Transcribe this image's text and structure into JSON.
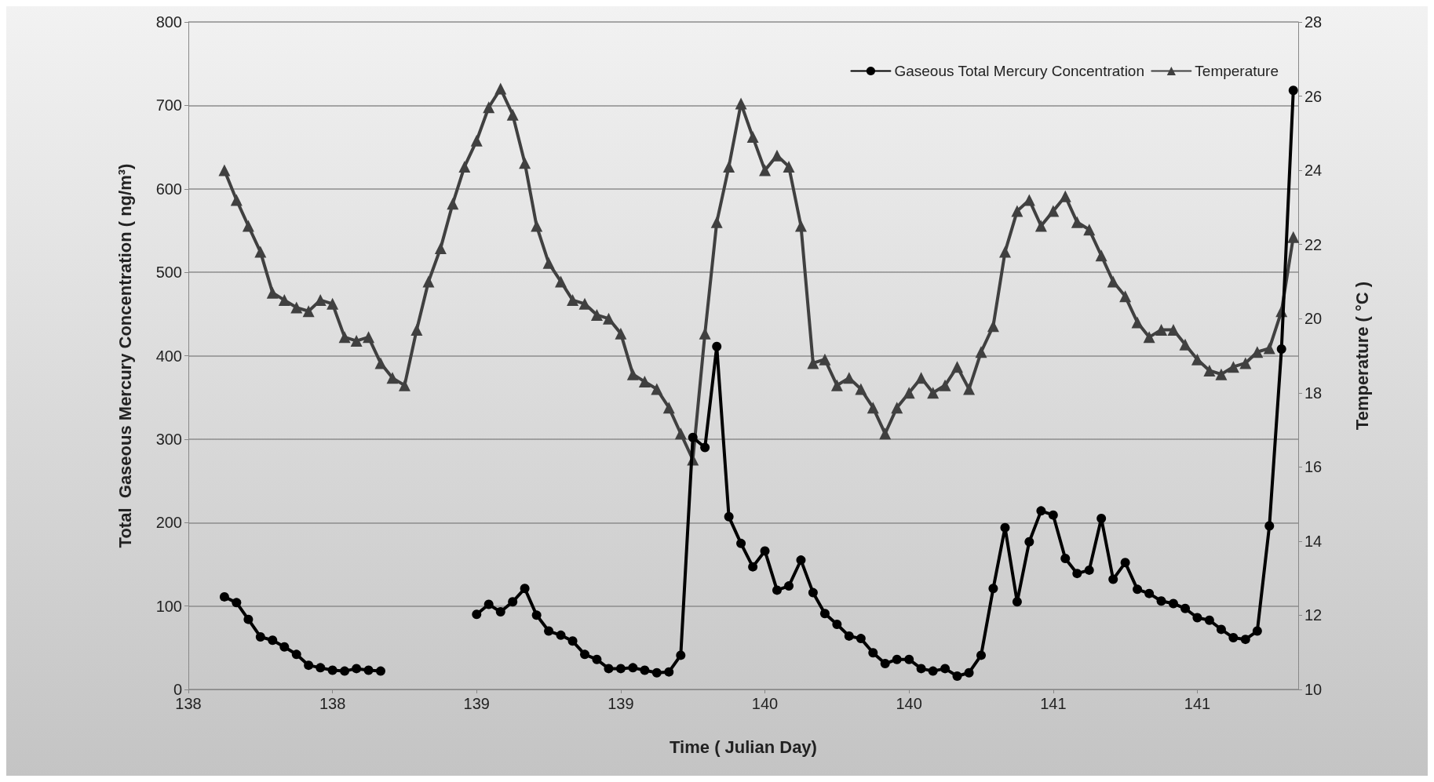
{
  "chart_data": {
    "type": "line",
    "xlabel": "Time ( Julian Day)",
    "ylabel": "Total  Gaseous Mercury Concentration ( ng/m³)",
    "y2label": "Temperature ( °C )",
    "x": [
      138.125,
      138.167,
      138.208,
      138.25,
      138.292,
      138.333,
      138.375,
      138.417,
      138.458,
      138.5,
      138.542,
      138.583,
      138.625,
      138.667,
      138.708,
      138.75,
      138.792,
      138.833,
      138.875,
      138.917,
      138.958,
      139.0,
      139.042,
      139.083,
      139.125,
      139.167,
      139.208,
      139.25,
      139.292,
      139.333,
      139.375,
      139.417,
      139.458,
      139.5,
      139.542,
      139.583,
      139.625,
      139.667,
      139.708,
      139.75,
      139.792,
      139.833,
      139.875,
      139.917,
      139.958,
      140.0,
      140.042,
      140.083,
      140.125,
      140.167,
      140.208,
      140.25,
      140.292,
      140.333,
      140.375,
      140.417,
      140.458,
      140.5,
      140.542,
      140.583,
      140.625,
      140.667,
      140.708,
      140.75,
      140.792,
      140.833,
      140.875,
      140.917,
      140.958,
      141.0,
      141.042,
      141.083,
      141.125,
      141.167,
      141.208,
      141.25,
      141.292,
      141.333,
      141.375,
      141.417,
      141.458,
      141.5,
      141.542,
      141.583,
      141.625,
      141.667,
      141.708,
      141.75,
      141.792,
      141.833
    ],
    "series": [
      {
        "name": "Gaseous Total Mercury Concentration",
        "color": "#000000",
        "marker": "circle",
        "values": [
          111,
          104,
          84,
          63,
          59,
          51,
          42,
          29,
          26,
          23,
          22,
          25,
          23,
          22,
          null,
          null,
          null,
          null,
          null,
          null,
          null,
          90,
          102,
          93,
          105,
          121,
          89,
          70,
          65,
          58,
          42,
          36,
          25,
          25,
          26,
          23,
          20,
          21,
          41,
          302,
          290,
          411,
          207,
          175,
          147,
          166,
          119,
          124,
          155,
          116,
          91,
          78,
          64,
          61,
          44,
          31,
          36,
          36,
          25,
          22,
          25,
          16,
          20,
          41,
          121,
          194,
          105,
          177,
          214,
          209,
          157,
          139,
          143,
          205,
          132,
          152,
          120,
          115,
          106,
          103,
          97,
          86,
          83,
          72,
          62,
          60,
          70,
          196,
          408,
          718
        ]
      },
      {
        "name": "Temperature",
        "color": "#404040",
        "marker": "triangle",
        "axis": "y2",
        "values": [
          24.0,
          23.2,
          22.5,
          21.8,
          20.7,
          20.5,
          20.3,
          20.2,
          20.5,
          20.4,
          19.5,
          19.4,
          19.5,
          18.8,
          18.4,
          18.2,
          19.7,
          21.0,
          21.9,
          23.1,
          24.1,
          24.8,
          25.7,
          26.2,
          25.5,
          24.2,
          22.5,
          21.5,
          21.0,
          20.5,
          20.4,
          20.1,
          20.0,
          19.6,
          18.5,
          18.3,
          18.1,
          17.6,
          16.9,
          16.2,
          19.6,
          22.6,
          24.1,
          25.8,
          24.9,
          24.0,
          24.4,
          24.1,
          22.5,
          18.8,
          18.9,
          18.2,
          18.4,
          18.1,
          17.6,
          16.9,
          17.6,
          18.0,
          18.4,
          18.0,
          18.2,
          18.7,
          18.1,
          19.1,
          19.8,
          21.8,
          22.9,
          23.2,
          22.5,
          22.9,
          23.3,
          22.6,
          22.4,
          21.7,
          21.0,
          20.6,
          19.9,
          19.5,
          19.7,
          19.7,
          19.3,
          18.9,
          18.6,
          18.5,
          18.7,
          18.8,
          19.1,
          19.2,
          20.2,
          22.2
        ]
      }
    ],
    "xlim": [
      138,
      141.85
    ],
    "xticks": [
      {
        "value": 138,
        "label": "138"
      },
      {
        "value": 138.5,
        "label": "138"
      },
      {
        "value": 139,
        "label": "139"
      },
      {
        "value": 139.5,
        "label": "139"
      },
      {
        "value": 140,
        "label": "140"
      },
      {
        "value": 140.5,
        "label": "140"
      },
      {
        "value": 141,
        "label": "141"
      },
      {
        "value": 141.5,
        "label": "141"
      }
    ],
    "ylim": [
      0,
      800
    ],
    "yticks": [
      0,
      100,
      200,
      300,
      400,
      500,
      600,
      700,
      800
    ],
    "y2lim": [
      10,
      28
    ],
    "y2ticks": [
      10,
      12,
      14,
      16,
      18,
      20,
      22,
      24,
      26,
      28
    ],
    "grid": "y",
    "legend": "top right",
    "line_style": "solid"
  }
}
